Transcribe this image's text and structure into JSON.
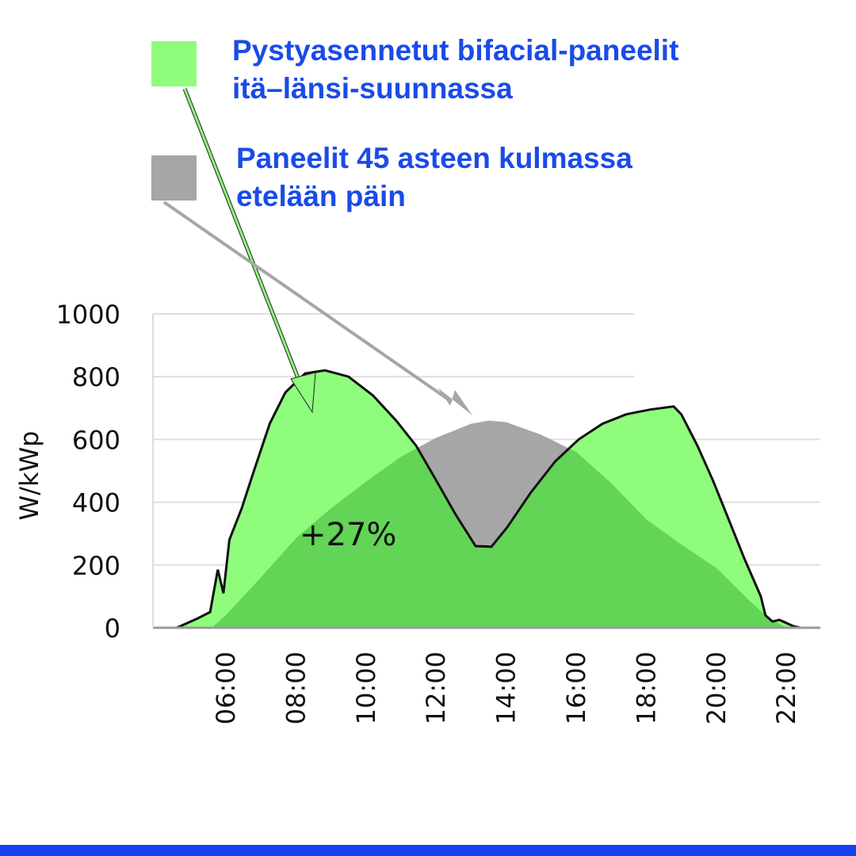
{
  "legend": [
    {
      "line1": "Pystyasennetut bifacial-paneelit",
      "line2": "itä–länsi-suunnassa",
      "color": "#8ffc7c"
    },
    {
      "line1": "Paneelit 45 asteen kulmassa",
      "line2": "etelään päin",
      "color": "#a6a6a6"
    }
  ],
  "colors": {
    "overlap": "#62d456",
    "text_blue": "#1a4be8",
    "bar": "#1440f0"
  },
  "chart_data": {
    "type": "area",
    "title": "",
    "xlabel": "",
    "ylabel": "W/kWp",
    "ylim": [
      0,
      1000
    ],
    "yticks": [
      0,
      200,
      400,
      600,
      800,
      1000
    ],
    "xticks": [
      "06:00",
      "08:00",
      "10:00",
      "12:00",
      "14:00",
      "16:00",
      "18:00",
      "20:00",
      "22:00"
    ],
    "xtick_hours": [
      6,
      8,
      10,
      12,
      14,
      16,
      18,
      20,
      22
    ],
    "grid": true,
    "annotation": "+27%",
    "series": [
      {
        "name": "Pystyasennetut bifacial-paneelit itä–länsi-suunnassa",
        "x": [
          4.6,
          5.2,
          5.55,
          5.77,
          5.93,
          6.1,
          6.45,
          6.8,
          7.25,
          7.7,
          8.26,
          8.83,
          9.5,
          10.2,
          10.86,
          11.43,
          12.0,
          12.56,
          13.13,
          13.58,
          14.03,
          14.7,
          15.4,
          16.07,
          16.75,
          17.43,
          18.1,
          18.78,
          19.0,
          19.46,
          19.9,
          20.37,
          20.8,
          21.27,
          21.4,
          21.6,
          21.8,
          22.2,
          22.4
        ],
        "y": [
          0,
          30,
          50,
          185,
          110,
          280,
          380,
          500,
          650,
          750,
          810,
          820,
          800,
          740,
          660,
          580,
          470,
          360,
          260,
          258,
          320,
          430,
          530,
          600,
          650,
          680,
          695,
          705,
          680,
          580,
          470,
          340,
          220,
          100,
          40,
          20,
          25,
          5,
          0
        ]
      },
      {
        "name": "Paneelit 45 asteen kulmassa etelään päin",
        "x": [
          5.6,
          6,
          7,
          8,
          9,
          10,
          11,
          12,
          13,
          13.5,
          14,
          15,
          16,
          17,
          18,
          19,
          20,
          21,
          21.5,
          22
        ],
        "y": [
          0,
          40,
          160,
          285,
          380,
          465,
          545,
          605,
          650,
          660,
          655,
          615,
          560,
          460,
          345,
          265,
          190,
          80,
          30,
          0
        ]
      }
    ]
  }
}
